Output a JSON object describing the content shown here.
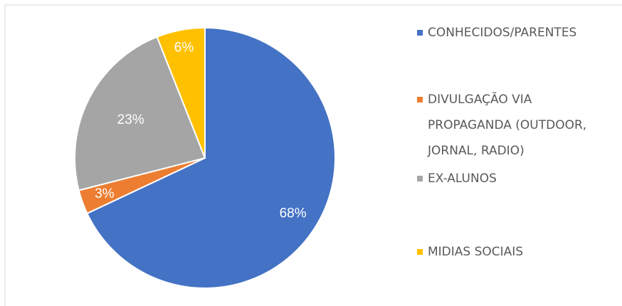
{
  "chart_data": {
    "type": "pie",
    "categories": [
      "CONHECIDOS/PARENTES",
      "DIVULGAÇÃO VIA PROPAGANDA (OUTDOOR, JORNAL, RADIO)",
      "EX-ALUNOS",
      "MIDIAS SOCIAIS"
    ],
    "values": [
      68,
      3,
      23,
      6
    ],
    "value_labels": [
      "68%",
      "3%",
      "23%",
      "6%"
    ],
    "colors": [
      "#4472c4",
      "#ed7d31",
      "#a5a5a5",
      "#ffc000"
    ],
    "legend": "right"
  }
}
